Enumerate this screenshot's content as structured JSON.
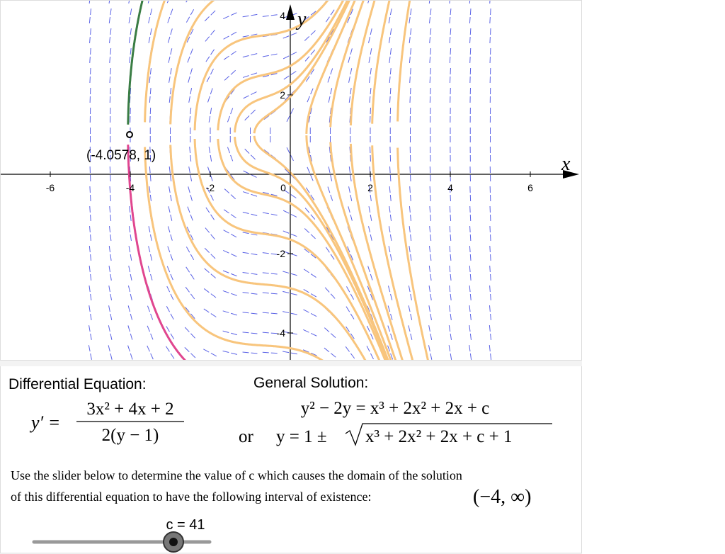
{
  "graph": {
    "x_axis_label": "x",
    "y_axis_label": "y",
    "xticks": [
      -6,
      -4,
      -2,
      0,
      2,
      4,
      6
    ],
    "yticks": [
      -4,
      -2,
      2,
      4
    ],
    "point_label": "(-4.0578, 1)"
  },
  "panel": {
    "de_heading": "Differential Equation:",
    "de_lhs": "y′ =",
    "de_numerator": "3x² + 4x + 2",
    "de_denominator": "2(y − 1)",
    "gs_heading": "General Solution:",
    "gs_line1": "y² − 2y = x³ + 2x² + 2x + c",
    "gs_or": "or",
    "gs_line2_lhs": "y = 1 ±",
    "gs_line2_radicand": "x³ + 2x² + 2x + c + 1",
    "instruction_line1": "Use the slider below to determine the value of c which causes the domain of the solution",
    "instruction_line2": "of this differential equation to have the following interval of existence:",
    "interval": "(−4, ∞)"
  },
  "slider": {
    "label": "c = 41"
  }
}
